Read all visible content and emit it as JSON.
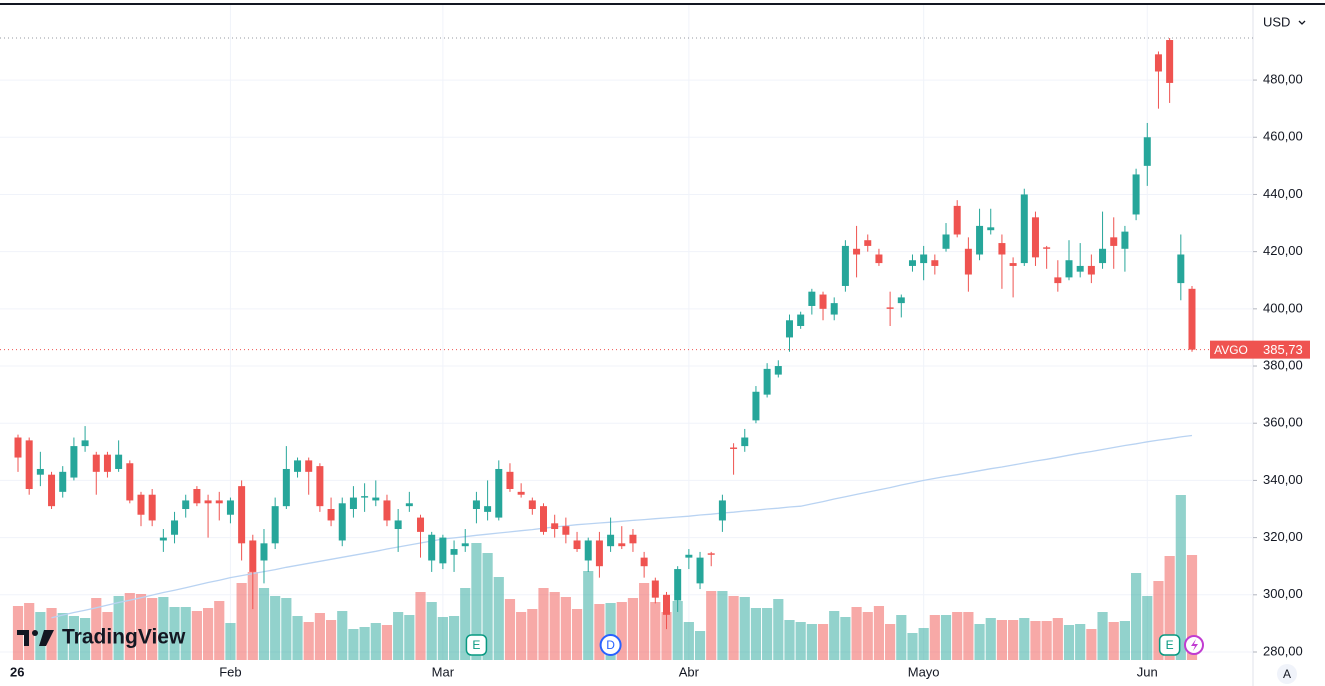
{
  "chart_data": {
    "type": "candlestick",
    "symbol": "AVGO",
    "currency": "USD",
    "brand": "TradingView",
    "auto_button": "A",
    "up_color": "#26a69a",
    "down_color": "#ef5350",
    "ma_color": "#b9d3f2",
    "last_price": {
      "value": 385.73,
      "label": "385,73"
    },
    "ylim": [
      277.2,
      505.2
    ],
    "yticks": [
      {
        "value": 280,
        "label": "280,00"
      },
      {
        "value": 300,
        "label": "300,00"
      },
      {
        "value": 320,
        "label": "320,00"
      },
      {
        "value": 340,
        "label": "340,00"
      },
      {
        "value": 360,
        "label": "360,00"
      },
      {
        "value": 380,
        "label": "380,00"
      },
      {
        "value": 400,
        "label": "400,00"
      },
      {
        "value": 420,
        "label": "420,00"
      },
      {
        "value": 440,
        "label": "440,00"
      },
      {
        "value": 460,
        "label": "460,00"
      },
      {
        "value": 480,
        "label": "480,00"
      }
    ],
    "grid": true,
    "categories": [
      "26",
      null,
      null,
      null,
      null,
      null,
      null,
      null,
      null,
      null,
      null,
      null,
      null,
      null,
      null,
      null,
      null,
      null,
      null,
      "Feb",
      null,
      null,
      null,
      null,
      null,
      null,
      null,
      null,
      null,
      null,
      null,
      null,
      null,
      null,
      null,
      null,
      null,
      null,
      "Mar",
      null,
      null,
      null,
      null,
      null,
      null,
      null,
      null,
      null,
      null,
      null,
      null,
      null,
      null,
      null,
      null,
      null,
      null,
      null,
      null,
      null,
      "Abr",
      null,
      null,
      null,
      null,
      null,
      null,
      null,
      null,
      null,
      null,
      null,
      null,
      null,
      null,
      null,
      null,
      null,
      null,
      null,
      null,
      "Mayo",
      null,
      null,
      null,
      null,
      null,
      null,
      null,
      null,
      null,
      null,
      null,
      null,
      null,
      null,
      null,
      null,
      null,
      null,
      null,
      "Jun",
      null,
      null,
      null,
      null
    ],
    "candles": [
      [
        355,
        356,
        343,
        348
      ],
      [
        354,
        355,
        335,
        337
      ],
      [
        342,
        350,
        338,
        344
      ],
      [
        342,
        343,
        330,
        331
      ],
      [
        336,
        345,
        334,
        343
      ],
      [
        341,
        355,
        340,
        352
      ],
      [
        352,
        359,
        350,
        354
      ],
      [
        349,
        350,
        335,
        343
      ],
      [
        349,
        350,
        341,
        343
      ],
      [
        344,
        354,
        343,
        349
      ],
      [
        346,
        347,
        332,
        333
      ],
      [
        335,
        336,
        324,
        328
      ],
      [
        335,
        337,
        324,
        326
      ],
      [
        319,
        323,
        315,
        320
      ],
      [
        321,
        329,
        318,
        326
      ],
      [
        330,
        335,
        327,
        333
      ],
      [
        337,
        338,
        331,
        332
      ],
      [
        333,
        335,
        320,
        332
      ],
      [
        333,
        336,
        326,
        332
      ],
      [
        328,
        334,
        325,
        333
      ],
      [
        338,
        340,
        312,
        318
      ],
      [
        319,
        321,
        295,
        308
      ],
      [
        312,
        323,
        304,
        318
      ],
      [
        318,
        334,
        316,
        331
      ],
      [
        331,
        352,
        330,
        344
      ],
      [
        343,
        348,
        341,
        347
      ],
      [
        347,
        348,
        335,
        343
      ],
      [
        345,
        346,
        329,
        331
      ],
      [
        330,
        334,
        324,
        326
      ],
      [
        319,
        334,
        317,
        332
      ],
      [
        330,
        338,
        327,
        334
      ],
      [
        334,
        339,
        329,
        334.5
      ],
      [
        333,
        340,
        331,
        334
      ],
      [
        333,
        335,
        324,
        326
      ],
      [
        323,
        330,
        315,
        326
      ],
      [
        331,
        336,
        329,
        332
      ],
      [
        327,
        328,
        313,
        322
      ],
      [
        312,
        322,
        308,
        321
      ],
      [
        311,
        321,
        309,
        320
      ],
      [
        314,
        319,
        308,
        316
      ],
      [
        317,
        323,
        315,
        318
      ],
      [
        330,
        336,
        325,
        333
      ],
      [
        329,
        340,
        326,
        331
      ],
      [
        327,
        347,
        326,
        344
      ],
      [
        343,
        346,
        336,
        337
      ],
      [
        336,
        339,
        334,
        335
      ],
      [
        333,
        334,
        328,
        330
      ],
      [
        331,
        332,
        321,
        322
      ],
      [
        325,
        328,
        320,
        323
      ],
      [
        324,
        327,
        318,
        321
      ],
      [
        319,
        322,
        315,
        316
      ],
      [
        312,
        320,
        308,
        319
      ],
      [
        319,
        322,
        306,
        310
      ],
      [
        317,
        327,
        315,
        321
      ],
      [
        318,
        324,
        316,
        317
      ],
      [
        321,
        323,
        315,
        318
      ],
      [
        313,
        315,
        306,
        310
      ],
      [
        305,
        306,
        297,
        299
      ],
      [
        300,
        301,
        288,
        293
      ],
      [
        298,
        310,
        294,
        309
      ],
      [
        313,
        316,
        309,
        314
      ],
      [
        304,
        315,
        302,
        313
      ],
      [
        314.5,
        315,
        310,
        314
      ],
      [
        326,
        335,
        322,
        333
      ],
      [
        351.5,
        353,
        342,
        351
      ],
      [
        352,
        358,
        350,
        355
      ],
      [
        361,
        373,
        360,
        371
      ],
      [
        370,
        381,
        369,
        379
      ],
      [
        377,
        382,
        376,
        380
      ],
      [
        390,
        398,
        385,
        396
      ],
      [
        394,
        399,
        393,
        398
      ],
      [
        401,
        407,
        398,
        406
      ],
      [
        405,
        406,
        396,
        400
      ],
      [
        398,
        404,
        396,
        402
      ],
      [
        408,
        424,
        406,
        422
      ],
      [
        421,
        429,
        411,
        419
      ],
      [
        424,
        426,
        420,
        422
      ],
      [
        419,
        421,
        415,
        416
      ],
      [
        400.5,
        406,
        394,
        400
      ],
      [
        402,
        405,
        397,
        404
      ],
      [
        415,
        419,
        413,
        417
      ],
      [
        416,
        422,
        410,
        419
      ],
      [
        417,
        419,
        412,
        415
      ],
      [
        421,
        430,
        420,
        426
      ],
      [
        436,
        438,
        425,
        426
      ],
      [
        421,
        425,
        406,
        412
      ],
      [
        419,
        435,
        417,
        429
      ],
      [
        427.5,
        435,
        426,
        428.5
      ],
      [
        423,
        426,
        407,
        419
      ],
      [
        416,
        418,
        404,
        415
      ],
      [
        416,
        442,
        415,
        440
      ],
      [
        432,
        434,
        415,
        418
      ],
      [
        421.5,
        422,
        414,
        421
      ],
      [
        411,
        417,
        406,
        409
      ],
      [
        411,
        424,
        410,
        417
      ],
      [
        413,
        423,
        411,
        415
      ],
      [
        415,
        419,
        409,
        412
      ],
      [
        416,
        434,
        414,
        421
      ],
      [
        425,
        432,
        414,
        422
      ],
      [
        421,
        429,
        413,
        427
      ],
      [
        433,
        449,
        431,
        447
      ],
      [
        450,
        465,
        443,
        460
      ],
      [
        489,
        490,
        470,
        483
      ],
      [
        494,
        494.7,
        472,
        479
      ],
      [
        409,
        426,
        403,
        419
      ],
      [
        407,
        408,
        385,
        385.73
      ]
    ],
    "volume": [
      54,
      57,
      48,
      52,
      47,
      44,
      42,
      62,
      48,
      64,
      67,
      66,
      62,
      63,
      53,
      53,
      49,
      52,
      59,
      37,
      77,
      88,
      72,
      64,
      62,
      44,
      38,
      47,
      40,
      49,
      31,
      33,
      37,
      35,
      48,
      45,
      68,
      58,
      43,
      44,
      72,
      117,
      107,
      83,
      61,
      48,
      51,
      72,
      68,
      63,
      51,
      89,
      56,
      57,
      58,
      62,
      77,
      58,
      48,
      59,
      38,
      29,
      69,
      69,
      64,
      63,
      52,
      52,
      61,
      40,
      38,
      36,
      36,
      49,
      43,
      53,
      48,
      54,
      36,
      45,
      27,
      32,
      45,
      45,
      48,
      48,
      36,
      42,
      40,
      40,
      42,
      39,
      39,
      42,
      35,
      36,
      31,
      48,
      38,
      39,
      87,
      64,
      79,
      104,
      165,
      105
    ],
    "ma": [
      null,
      null,
      null,
      292,
      292.9,
      293.8,
      294.6,
      295.5,
      296.4,
      297.3,
      298.1,
      299,
      299.9,
      300.8,
      301.6,
      302.5,
      303.4,
      304.3,
      305.1,
      306,
      306.7,
      307.4,
      308.1,
      308.8,
      309.6,
      310.3,
      311,
      311.7,
      312.4,
      313.1,
      313.8,
      314.5,
      315.2,
      316,
      316.7,
      317.4,
      318.1,
      318.8,
      319.5,
      319.9,
      320.3,
      320.8,
      321.2,
      321.6,
      322,
      322.4,
      322.8,
      323.3,
      323.7,
      324.1,
      324.5,
      324.8,
      325.1,
      325.4,
      325.7,
      326,
      326.3,
      326.6,
      326.9,
      327.2,
      327.5,
      327.9,
      328.2,
      328.6,
      328.9,
      329.3,
      329.6,
      330,
      330.3,
      330.7,
      331,
      331.8,
      332.6,
      333.5,
      334.3,
      335.1,
      335.9,
      336.7,
      337.5,
      338.4,
      339.2,
      340,
      340.7,
      341.4,
      342,
      342.7,
      343.4,
      344.1,
      344.7,
      345.4,
      346.1,
      346.8,
      347.4,
      348.1,
      348.8,
      349.5,
      350.1,
      350.8,
      351.5,
      352.2,
      352.8,
      353.5,
      354.1,
      354.6,
      355.2,
      355.7
    ],
    "events": [
      {
        "index": 41,
        "label": "E"
      },
      {
        "index": 53,
        "label": "D"
      },
      {
        "index": 103,
        "label": "E"
      }
    ]
  }
}
